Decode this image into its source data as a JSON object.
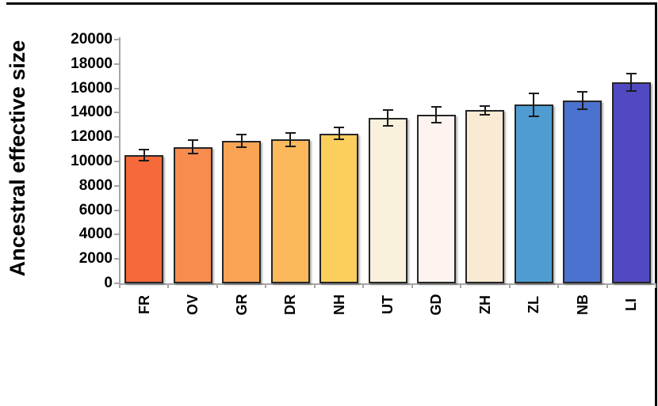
{
  "chart_data": {
    "type": "bar",
    "title": "",
    "ylabel": "Ancestral effective size",
    "xlabel": "",
    "categories": [
      "FR",
      "OV",
      "GR",
      "DR",
      "NH",
      "UT",
      "GD",
      "ZH",
      "ZL",
      "NB",
      "LI"
    ],
    "series": [
      {
        "name": "Ancestral effective size",
        "values": [
          10500,
          11200,
          11700,
          11800,
          12300,
          13600,
          13800,
          14200,
          14650,
          15000,
          16500
        ],
        "errors": [
          450,
          550,
          500,
          550,
          500,
          650,
          650,
          350,
          950,
          700,
          700
        ]
      }
    ],
    "bar_colors": [
      "#F5693B",
      "#F78C4E",
      "#F9A455",
      "#FBB95C",
      "#FCCE5D",
      "#FAF1DC",
      "#FDF4F0",
      "#F9EBD3",
      "#4E9CD2",
      "#4A72CF",
      "#5149C1"
    ],
    "bar_border_color": "#262626",
    "error_bar_color": "#1a1a1a",
    "axis_color": "#a6a6a6",
    "tick_label_color": "#000000",
    "frame_color": "#000000",
    "ylim": [
      0,
      20000
    ],
    "yticks": [
      "0",
      "2000",
      "4000",
      "6000",
      "8000",
      "10000",
      "12000",
      "14000",
      "16000",
      "18000",
      "20000"
    ],
    "grid": false,
    "legend": null
  }
}
